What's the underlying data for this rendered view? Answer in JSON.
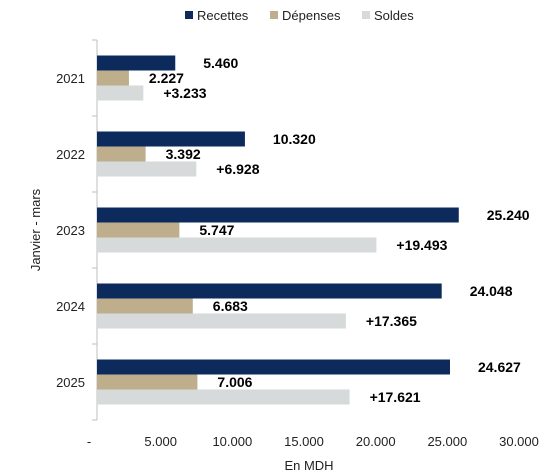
{
  "chart_data": {
    "type": "bar",
    "orientation": "horizontal",
    "categories": [
      "2021",
      "2022",
      "2023",
      "2024",
      "2025"
    ],
    "series": [
      {
        "name": "Recettes",
        "values": [
          5460,
          10320,
          25240,
          24048,
          24627
        ],
        "labels": [
          "5.460",
          "10.320",
          "25.240",
          "24.048",
          "24.627"
        ],
        "color": "#0c2a5b"
      },
      {
        "name": "Dépenses",
        "values": [
          2227,
          3392,
          5747,
          6683,
          7006
        ],
        "labels": [
          "2.227",
          "3.392",
          "5.747",
          "6.683",
          "7.006"
        ],
        "color": "#bfae8b"
      },
      {
        "name": "Soldes",
        "values": [
          3233,
          6928,
          19493,
          17365,
          17621
        ],
        "labels": [
          "+3.233",
          "+6.928",
          "+19.493",
          "+17.365",
          "+17.621"
        ],
        "color": "#d6dada"
      }
    ],
    "xlabel": "En MDH",
    "ylabel": "Janvier - mars",
    "xlim": [
      0,
      30000
    ],
    "xticks": [
      0,
      5000,
      10000,
      15000,
      20000,
      25000,
      30000
    ],
    "xtick_labels": [
      "-",
      "5.000",
      "10.000",
      "15.000",
      "20.000",
      "25.000",
      "30.000"
    ],
    "legend_position": "top",
    "grid": false
  }
}
